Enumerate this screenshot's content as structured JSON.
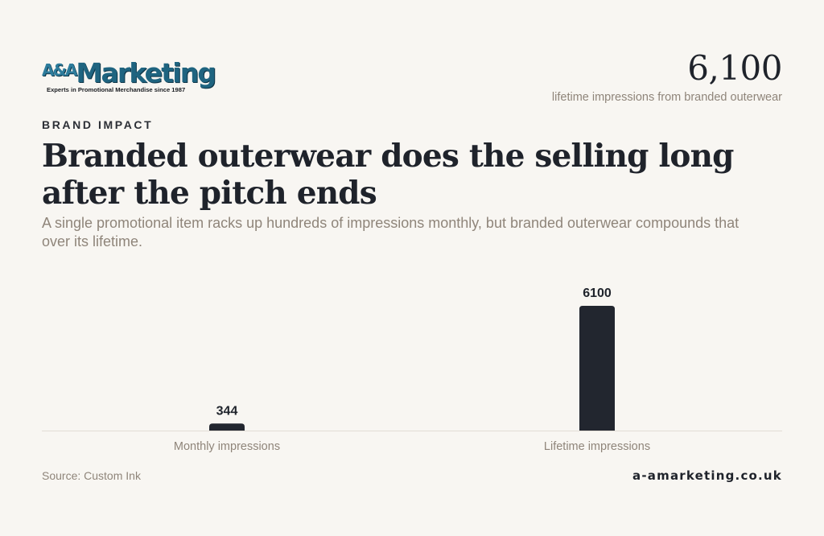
{
  "brand": {
    "logo_prefix": "A&A",
    "logo_word": "Marketing",
    "tagline": "Experts in Promotional Merchandise since 1987"
  },
  "stat": {
    "value": "6,100",
    "caption": "lifetime impressions from branded outerwear"
  },
  "eyebrow": "BRAND IMPACT",
  "headline": "Branded outerwear does the selling long after the pitch ends",
  "subtitle": "A single promotional item racks up hundreds of impressions monthly, but branded outerwear compounds that over its lifetime.",
  "chart_data": {
    "type": "bar",
    "categories": [
      "Monthly impressions",
      "Lifetime impressions"
    ],
    "values": [
      344,
      6100
    ],
    "data_labels": [
      "344",
      "6100"
    ],
    "title": "",
    "xlabel": "",
    "ylabel": "",
    "ylim": [
      0,
      6100
    ],
    "grid": false,
    "legend": "none",
    "bar_color": "#22262f",
    "axis_color": "#e2ddd5",
    "label_color": "#8f857a"
  },
  "footer": {
    "source": "Source: Custom Ink",
    "site": "a-amarketing.co.uk"
  },
  "colors": {
    "background": "#f8f6f2",
    "text_dark": "#1f232b",
    "text_muted": "#8f857a",
    "logo_blue": "#1f6480"
  }
}
